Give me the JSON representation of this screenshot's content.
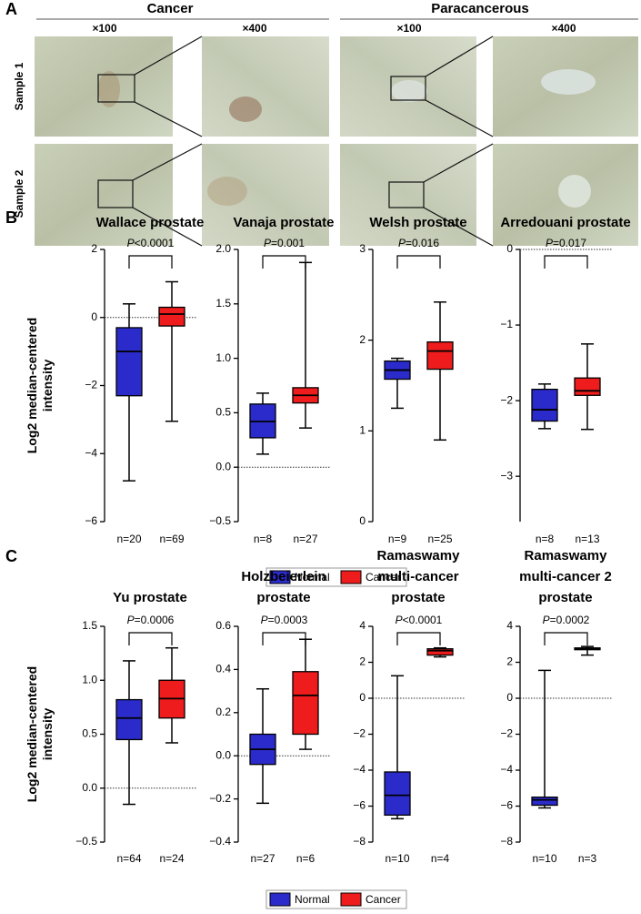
{
  "panel_a": {
    "label": "A",
    "groups": [
      "Cancer",
      "Paracancerous"
    ],
    "magnifications": [
      "×100",
      "×400",
      "×100",
      "×400"
    ],
    "samples": [
      "Sample 1",
      "Sample 2"
    ]
  },
  "panels": [
    {
      "label": "B",
      "y_label": [
        "Log2 median-centered",
        "intensity"
      ],
      "legend": [
        {
          "name": "Normal",
          "color": "#2b2bcc"
        },
        {
          "name": "Cancer",
          "color": "#ee1c1c"
        }
      ]
    },
    {
      "label": "C",
      "y_label": [
        "Log2 median-centered",
        "intensity"
      ],
      "legend": [
        {
          "name": "Normal",
          "color": "#2b2bcc"
        },
        {
          "name": "Cancer",
          "color": "#ee1c1c"
        }
      ]
    }
  ],
  "chart_data": [
    {
      "type": "box",
      "title": [
        "Wallace prostate"
      ],
      "p_value": "P<0.0001",
      "categories": [
        "n=20",
        "n=69"
      ],
      "ylim": [
        -6,
        2
      ],
      "yticks": [
        {
          "value": -6,
          "label": "−6"
        },
        {
          "value": -4,
          "label": "−4"
        },
        {
          "value": -2,
          "label": "−2"
        },
        0,
        2
      ],
      "ref_line": 0,
      "series": [
        {
          "color": "#2b2bcc",
          "min": -4.8,
          "q1": -2.3,
          "median": -1.0,
          "q3": -0.3,
          "max": 0.4
        },
        {
          "color": "#ee1c1c",
          "min": -3.05,
          "q1": -0.25,
          "median": 0.1,
          "q3": 0.3,
          "max": 1.05
        }
      ]
    },
    {
      "type": "box",
      "title": [
        "Vanaja prostate"
      ],
      "p_value": "P=0.001",
      "categories": [
        "n=8",
        "n=27"
      ],
      "ylim": [
        -0.5,
        2.0
      ],
      "yticks": [
        {
          "value": -0.5,
          "label": "−0.5"
        },
        {
          "value": 0,
          "label": "0.0"
        },
        0.5,
        {
          "value": 1,
          "label": "1.0"
        },
        1.5,
        {
          "value": 2,
          "label": "2.0"
        }
      ],
      "ref_line": 0,
      "series": [
        {
          "color": "#2b2bcc",
          "min": 0.12,
          "q1": 0.27,
          "median": 0.42,
          "q3": 0.58,
          "max": 0.68
        },
        {
          "color": "#ee1c1c",
          "min": 0.36,
          "q1": 0.59,
          "median": 0.66,
          "q3": 0.73,
          "max": 1.88
        }
      ]
    },
    {
      "type": "box",
      "title": [
        "Welsh prostate"
      ],
      "p_value": "P=0.016",
      "categories": [
        "n=9",
        "n=25"
      ],
      "ylim": [
        0,
        3
      ],
      "yticks": [
        0,
        1,
        2,
        3
      ],
      "series": [
        {
          "color": "#2b2bcc",
          "min": 1.25,
          "q1": 1.57,
          "median": 1.67,
          "q3": 1.77,
          "max": 1.8
        },
        {
          "color": "#ee1c1c",
          "min": 0.9,
          "q1": 1.68,
          "median": 1.88,
          "q3": 1.98,
          "max": 2.42
        }
      ]
    },
    {
      "type": "box",
      "title": [
        "Arredouani prostate"
      ],
      "p_value": "P=0.017",
      "categories": [
        "n=8",
        "n=13"
      ],
      "ylim": [
        -3.6,
        0
      ],
      "yticks": [
        {
          "value": -3,
          "label": "−3"
        },
        {
          "value": -2,
          "label": "−2"
        },
        {
          "value": -1,
          "label": "−1"
        },
        0
      ],
      "ref_line": 0,
      "series": [
        {
          "color": "#2b2bcc",
          "min": -2.37,
          "q1": -2.27,
          "median": -2.12,
          "q3": -1.85,
          "max": -1.78
        },
        {
          "color": "#ee1c1c",
          "min": -2.38,
          "q1": -1.93,
          "median": -1.87,
          "q3": -1.7,
          "max": -1.25
        }
      ]
    },
    {
      "type": "box",
      "title": [
        "Yu prostate"
      ],
      "p_value": "P=0.0006",
      "categories": [
        "n=64",
        "n=24"
      ],
      "ylim": [
        -0.5,
        1.5
      ],
      "yticks": [
        {
          "value": -0.5,
          "label": "−0.5"
        },
        {
          "value": 0,
          "label": "0.0"
        },
        0.5,
        {
          "value": 1,
          "label": "1.0"
        },
        1.5
      ],
      "ref_line": 0,
      "series": [
        {
          "color": "#2b2bcc",
          "min": -0.15,
          "q1": 0.45,
          "median": 0.65,
          "q3": 0.82,
          "max": 1.18
        },
        {
          "color": "#ee1c1c",
          "min": 0.42,
          "q1": 0.65,
          "median": 0.83,
          "q3": 1.0,
          "max": 1.3
        }
      ]
    },
    {
      "type": "box",
      "title": [
        "Holzbeierlein",
        "prostate"
      ],
      "p_value": "P=0.0003",
      "categories": [
        "n=27",
        "n=6"
      ],
      "ylim": [
        -0.4,
        0.6
      ],
      "yticks": [
        {
          "value": -0.4,
          "label": "−0.4"
        },
        {
          "value": -0.2,
          "label": "−0.2"
        },
        {
          "value": 0,
          "label": "0.0"
        },
        0.2,
        0.4,
        0.6
      ],
      "ref_line": 0,
      "series": [
        {
          "color": "#2b2bcc",
          "min": -0.22,
          "q1": -0.04,
          "median": 0.03,
          "q3": 0.1,
          "max": 0.31
        },
        {
          "color": "#ee1c1c",
          "min": 0.03,
          "q1": 0.1,
          "median": 0.28,
          "q3": 0.39,
          "max": 0.54
        }
      ]
    },
    {
      "type": "box",
      "title": [
        "Ramaswamy",
        "multi-cancer",
        "prostate"
      ],
      "p_value": "P<0.0001",
      "categories": [
        "n=10",
        "n=4"
      ],
      "ylim": [
        -8,
        4
      ],
      "yticks": [
        {
          "value": -8,
          "label": "−8"
        },
        {
          "value": -6,
          "label": "−6"
        },
        {
          "value": -4,
          "label": "−4"
        },
        {
          "value": -2,
          "label": "−2"
        },
        0,
        2,
        4
      ],
      "ref_line": 0,
      "series": [
        {
          "color": "#2b2bcc",
          "min": -6.7,
          "q1": -6.5,
          "median": -5.4,
          "q3": -4.1,
          "max": 1.25
        },
        {
          "color": "#ee1c1c",
          "min": 2.3,
          "q1": 2.4,
          "median": 2.65,
          "q3": 2.75,
          "max": 2.8
        }
      ]
    },
    {
      "type": "box",
      "title": [
        "Ramaswamy",
        "multi-cancer 2",
        "prostate"
      ],
      "p_value": "P=0.0002",
      "categories": [
        "n=10",
        "n=3"
      ],
      "ylim": [
        -8,
        4
      ],
      "yticks": [
        {
          "value": -8,
          "label": "−8"
        },
        {
          "value": -6,
          "label": "−6"
        },
        {
          "value": -4,
          "label": "−4"
        },
        {
          "value": -2,
          "label": "−2"
        },
        0,
        2,
        4
      ],
      "ref_line": 0,
      "series": [
        {
          "color": "#2b2bcc",
          "min": -6.1,
          "q1": -5.95,
          "median": -5.65,
          "q3": -5.5,
          "max": 1.55
        },
        {
          "color": "#ee1c1c",
          "min": 2.4,
          "q1": 2.7,
          "median": 2.75,
          "q3": 2.8,
          "max": 2.88
        }
      ]
    }
  ]
}
